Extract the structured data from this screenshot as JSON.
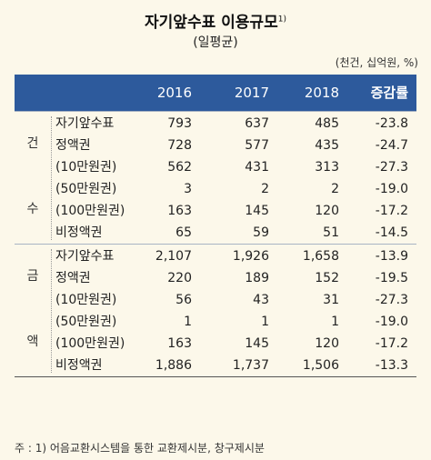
{
  "title": "자기앞수표 이용규모",
  "title_note": "1)",
  "subtitle": "(일평균)",
  "unit": "(천건, 십억원, %)",
  "columns": [
    "2016",
    "2017",
    "2018",
    "증감률"
  ],
  "groups": [
    {
      "labels": [
        "건",
        "수"
      ],
      "rows": [
        {
          "label": "자기앞수표",
          "v": [
            "793",
            "637",
            "485",
            "-23.8"
          ]
        },
        {
          "label": "정액권",
          "v": [
            "728",
            "577",
            "435",
            "-24.7"
          ]
        },
        {
          "label": "(10만원권)",
          "v": [
            "562",
            "431",
            "313",
            "-27.3"
          ]
        },
        {
          "label": "(50만원권)",
          "v": [
            "3",
            "2",
            "2",
            "-19.0"
          ]
        },
        {
          "label": "(100만원권)",
          "v": [
            "163",
            "145",
            "120",
            "-17.2"
          ]
        },
        {
          "label": "비정액권",
          "v": [
            "65",
            "59",
            "51",
            "-14.5"
          ]
        }
      ]
    },
    {
      "labels": [
        "금",
        "액"
      ],
      "rows": [
        {
          "label": "자기앞수표",
          "v": [
            "2,107",
            "1,926",
            "1,658",
            "-13.9"
          ]
        },
        {
          "label": "정액권",
          "v": [
            "220",
            "189",
            "152",
            "-19.5"
          ]
        },
        {
          "label": "(10만원권)",
          "v": [
            "56",
            "43",
            "31",
            "-27.3"
          ]
        },
        {
          "label": "(50만원권)",
          "v": [
            "1",
            "1",
            "1",
            "-19.0"
          ]
        },
        {
          "label": "(100만원권)",
          "v": [
            "163",
            "145",
            "120",
            "-17.2"
          ]
        },
        {
          "label": "비정액권",
          "v": [
            "1,886",
            "1,737",
            "1,506",
            "-13.3"
          ]
        }
      ]
    }
  ],
  "footnote": "주 : 1) 어음교환시스템을 통한 교환제시분, 창구제시분",
  "colors": {
    "header_bg": "#2d5a9c",
    "page_bg": "#fcf8ea"
  }
}
